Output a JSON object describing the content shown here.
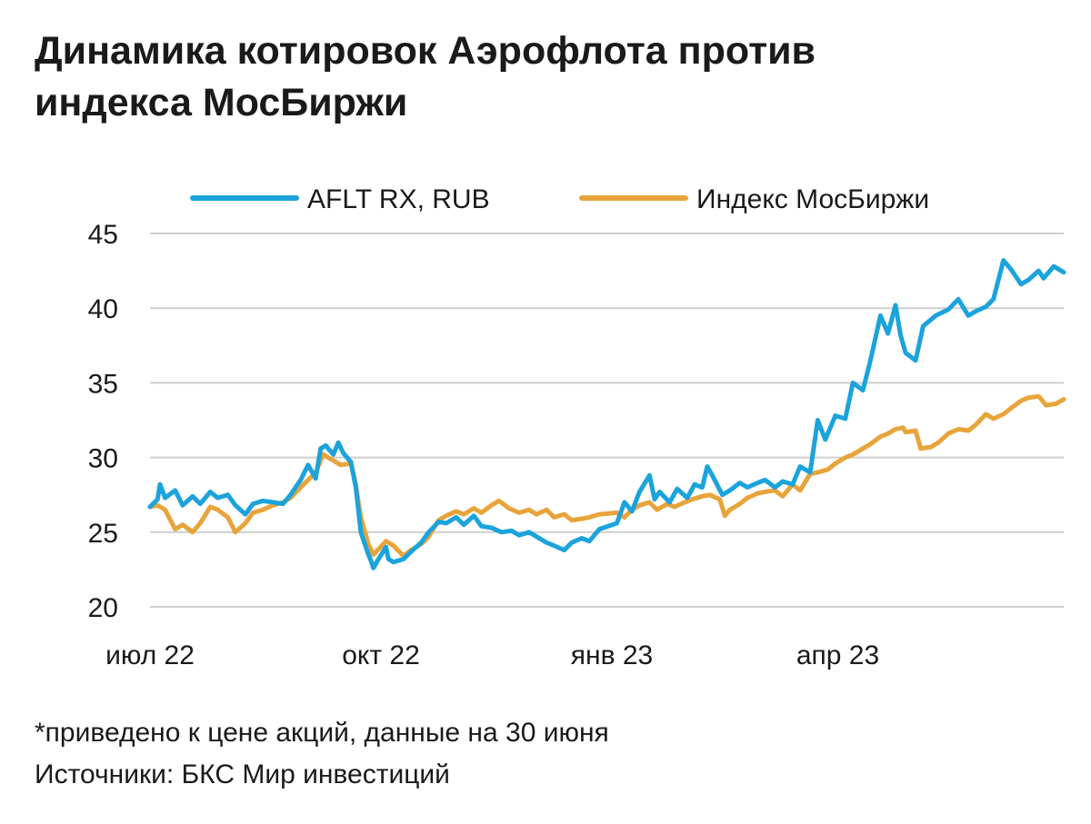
{
  "title_lines": [
    "Динамика котировок Аэрофлота против",
    "индекса МосБиржи"
  ],
  "notes": {
    "footnote": "*приведено к цене акций, данные на 30 июня",
    "source": "Источники: БКС Мир инвестиций"
  },
  "chart_data": {
    "type": "line",
    "title": "Динамика котировок Аэрофлота против индекса МосБиржи",
    "xlabel": "",
    "ylabel": "",
    "ylim": [
      20,
      45
    ],
    "yticks": [
      20,
      25,
      30,
      35,
      40,
      45
    ],
    "xlim": [
      "2022-07-01",
      "2023-06-30"
    ],
    "xticks": [
      {
        "date": "2022-07-01",
        "label": "июл 22"
      },
      {
        "date": "2022-10-01",
        "label": "окт 22"
      },
      {
        "date": "2023-01-01",
        "label": "янв 23"
      },
      {
        "date": "2023-04-01",
        "label": "апр 23"
      }
    ],
    "grid": "horizontal",
    "legend_position": "top",
    "series": [
      {
        "name": "AFLT RX, RUB",
        "color": "#1ba3dc",
        "points": [
          [
            "2022-07-01",
            26.7
          ],
          [
            "2022-07-04",
            27.2
          ],
          [
            "2022-07-05",
            28.2
          ],
          [
            "2022-07-07",
            27.3
          ],
          [
            "2022-07-11",
            27.8
          ],
          [
            "2022-07-14",
            26.8
          ],
          [
            "2022-07-18",
            27.4
          ],
          [
            "2022-07-21",
            26.9
          ],
          [
            "2022-07-25",
            27.7
          ],
          [
            "2022-07-28",
            27.3
          ],
          [
            "2022-08-01",
            27.5
          ],
          [
            "2022-08-04",
            26.8
          ],
          [
            "2022-08-08",
            26.2
          ],
          [
            "2022-08-11",
            26.9
          ],
          [
            "2022-08-15",
            27.1
          ],
          [
            "2022-08-19",
            27.0
          ],
          [
            "2022-08-23",
            26.9
          ],
          [
            "2022-08-26",
            27.5
          ],
          [
            "2022-08-30",
            28.5
          ],
          [
            "2022-09-02",
            29.5
          ],
          [
            "2022-09-05",
            28.6
          ],
          [
            "2022-09-07",
            30.6
          ],
          [
            "2022-09-09",
            30.8
          ],
          [
            "2022-09-12",
            30.2
          ],
          [
            "2022-09-14",
            31.0
          ],
          [
            "2022-09-16",
            30.3
          ],
          [
            "2022-09-19",
            29.7
          ],
          [
            "2022-09-21",
            28.0
          ],
          [
            "2022-09-22",
            26.5
          ],
          [
            "2022-09-23",
            25.0
          ],
          [
            "2022-09-26",
            23.5
          ],
          [
            "2022-09-27",
            23.1
          ],
          [
            "2022-09-28",
            22.6
          ],
          [
            "2022-09-30",
            23.2
          ],
          [
            "2022-10-03",
            24.0
          ],
          [
            "2022-10-04",
            23.2
          ],
          [
            "2022-10-06",
            23.0
          ],
          [
            "2022-10-10",
            23.2
          ],
          [
            "2022-10-13",
            23.7
          ],
          [
            "2022-10-17",
            24.3
          ],
          [
            "2022-10-20",
            25.0
          ],
          [
            "2022-10-24",
            25.7
          ],
          [
            "2022-10-27",
            25.6
          ],
          [
            "2022-10-31",
            26.0
          ],
          [
            "2022-11-03",
            25.5
          ],
          [
            "2022-11-07",
            26.1
          ],
          [
            "2022-11-10",
            25.4
          ],
          [
            "2022-11-14",
            25.3
          ],
          [
            "2022-11-18",
            25.0
          ],
          [
            "2022-11-22",
            25.1
          ],
          [
            "2022-11-25",
            24.8
          ],
          [
            "2022-11-29",
            25.0
          ],
          [
            "2022-12-02",
            24.7
          ],
          [
            "2022-12-06",
            24.3
          ],
          [
            "2022-12-09",
            24.1
          ],
          [
            "2022-12-13",
            23.8
          ],
          [
            "2022-12-16",
            24.3
          ],
          [
            "2022-12-20",
            24.6
          ],
          [
            "2022-12-23",
            24.4
          ],
          [
            "2022-12-27",
            25.2
          ],
          [
            "2023-01-03",
            25.6
          ],
          [
            "2023-01-06",
            27.0
          ],
          [
            "2023-01-09",
            26.4
          ],
          [
            "2023-01-12",
            27.7
          ],
          [
            "2023-01-16",
            28.8
          ],
          [
            "2023-01-18",
            27.2
          ],
          [
            "2023-01-20",
            27.7
          ],
          [
            "2023-01-24",
            27.0
          ],
          [
            "2023-01-27",
            27.9
          ],
          [
            "2023-01-31",
            27.3
          ],
          [
            "2023-02-03",
            28.2
          ],
          [
            "2023-02-06",
            28.0
          ],
          [
            "2023-02-08",
            29.4
          ],
          [
            "2023-02-10",
            28.8
          ],
          [
            "2023-02-14",
            27.5
          ],
          [
            "2023-02-17",
            27.8
          ],
          [
            "2023-02-21",
            28.3
          ],
          [
            "2023-02-24",
            28.0
          ],
          [
            "2023-02-28",
            28.3
          ],
          [
            "2023-03-03",
            28.5
          ],
          [
            "2023-03-07",
            28.0
          ],
          [
            "2023-03-10",
            28.4
          ],
          [
            "2023-03-14",
            28.2
          ],
          [
            "2023-03-17",
            29.4
          ],
          [
            "2023-03-21",
            29.0
          ],
          [
            "2023-03-24",
            32.5
          ],
          [
            "2023-03-27",
            31.2
          ],
          [
            "2023-03-31",
            32.8
          ],
          [
            "2023-04-04",
            32.6
          ],
          [
            "2023-04-07",
            35.0
          ],
          [
            "2023-04-11",
            34.5
          ],
          [
            "2023-04-14",
            36.5
          ],
          [
            "2023-04-18",
            39.5
          ],
          [
            "2023-04-21",
            38.3
          ],
          [
            "2023-04-24",
            40.2
          ],
          [
            "2023-04-26",
            38.2
          ],
          [
            "2023-04-28",
            37.0
          ],
          [
            "2023-05-02",
            36.5
          ],
          [
            "2023-05-05",
            38.8
          ],
          [
            "2023-05-10",
            39.5
          ],
          [
            "2023-05-15",
            39.9
          ],
          [
            "2023-05-19",
            40.6
          ],
          [
            "2023-05-23",
            39.5
          ],
          [
            "2023-05-26",
            39.8
          ],
          [
            "2023-05-30",
            40.1
          ],
          [
            "2023-06-02",
            40.6
          ],
          [
            "2023-06-06",
            43.2
          ],
          [
            "2023-06-09",
            42.6
          ],
          [
            "2023-06-13",
            41.6
          ],
          [
            "2023-06-16",
            41.9
          ],
          [
            "2023-06-20",
            42.5
          ],
          [
            "2023-06-22",
            42.0
          ],
          [
            "2023-06-26",
            42.8
          ],
          [
            "2023-06-30",
            42.4
          ]
        ]
      },
      {
        "name": "Индекс МосБиржи",
        "color": "#e8a43a",
        "points": [
          [
            "2022-07-01",
            26.7
          ],
          [
            "2022-07-04",
            26.8
          ],
          [
            "2022-07-07",
            26.5
          ],
          [
            "2022-07-11",
            25.2
          ],
          [
            "2022-07-14",
            25.5
          ],
          [
            "2022-07-18",
            25.0
          ],
          [
            "2022-07-21",
            25.6
          ],
          [
            "2022-07-25",
            26.7
          ],
          [
            "2022-07-28",
            26.5
          ],
          [
            "2022-08-01",
            26.0
          ],
          [
            "2022-08-04",
            25.0
          ],
          [
            "2022-08-08",
            25.6
          ],
          [
            "2022-08-11",
            26.3
          ],
          [
            "2022-08-15",
            26.5
          ],
          [
            "2022-08-19",
            26.8
          ],
          [
            "2022-08-23",
            27.0
          ],
          [
            "2022-08-26",
            27.3
          ],
          [
            "2022-08-30",
            28.0
          ],
          [
            "2022-09-02",
            28.5
          ],
          [
            "2022-09-05",
            29.0
          ],
          [
            "2022-09-08",
            30.2
          ],
          [
            "2022-09-12",
            29.8
          ],
          [
            "2022-09-15",
            29.5
          ],
          [
            "2022-09-19",
            29.6
          ],
          [
            "2022-09-21",
            28.2
          ],
          [
            "2022-09-22",
            27.0
          ],
          [
            "2022-09-23",
            26.0
          ],
          [
            "2022-09-26",
            24.2
          ],
          [
            "2022-09-28",
            23.5
          ],
          [
            "2022-10-03",
            24.4
          ],
          [
            "2022-10-06",
            24.1
          ],
          [
            "2022-10-10",
            23.4
          ],
          [
            "2022-10-13",
            23.8
          ],
          [
            "2022-10-17",
            24.2
          ],
          [
            "2022-10-20",
            24.7
          ],
          [
            "2022-10-24",
            25.8
          ],
          [
            "2022-10-27",
            26.1
          ],
          [
            "2022-10-31",
            26.4
          ],
          [
            "2022-11-03",
            26.2
          ],
          [
            "2022-11-07",
            26.6
          ],
          [
            "2022-11-10",
            26.3
          ],
          [
            "2022-11-14",
            26.8
          ],
          [
            "2022-11-17",
            27.1
          ],
          [
            "2022-11-21",
            26.6
          ],
          [
            "2022-11-25",
            26.3
          ],
          [
            "2022-11-29",
            26.5
          ],
          [
            "2022-12-02",
            26.2
          ],
          [
            "2022-12-06",
            26.5
          ],
          [
            "2022-12-09",
            26.0
          ],
          [
            "2022-12-13",
            26.2
          ],
          [
            "2022-12-16",
            25.8
          ],
          [
            "2022-12-20",
            25.9
          ],
          [
            "2022-12-23",
            26.0
          ],
          [
            "2022-12-27",
            26.2
          ],
          [
            "2023-01-03",
            26.3
          ],
          [
            "2023-01-06",
            26.0
          ],
          [
            "2023-01-09",
            26.5
          ],
          [
            "2023-01-12",
            26.8
          ],
          [
            "2023-01-16",
            27.0
          ],
          [
            "2023-01-19",
            26.5
          ],
          [
            "2023-01-23",
            26.9
          ],
          [
            "2023-01-26",
            26.7
          ],
          [
            "2023-01-30",
            27.0
          ],
          [
            "2023-02-02",
            27.2
          ],
          [
            "2023-02-06",
            27.4
          ],
          [
            "2023-02-09",
            27.5
          ],
          [
            "2023-02-13",
            27.2
          ],
          [
            "2023-02-15",
            26.1
          ],
          [
            "2023-02-17",
            26.5
          ],
          [
            "2023-02-21",
            26.9
          ],
          [
            "2023-02-24",
            27.3
          ],
          [
            "2023-02-28",
            27.6
          ],
          [
            "2023-03-03",
            27.7
          ],
          [
            "2023-03-07",
            27.8
          ],
          [
            "2023-03-10",
            27.4
          ],
          [
            "2023-03-14",
            28.2
          ],
          [
            "2023-03-17",
            27.8
          ],
          [
            "2023-03-21",
            28.9
          ],
          [
            "2023-03-24",
            29.0
          ],
          [
            "2023-03-28",
            29.2
          ],
          [
            "2023-03-31",
            29.6
          ],
          [
            "2023-04-04",
            30.0
          ],
          [
            "2023-04-07",
            30.2
          ],
          [
            "2023-04-11",
            30.6
          ],
          [
            "2023-04-14",
            30.9
          ],
          [
            "2023-04-18",
            31.4
          ],
          [
            "2023-04-21",
            31.6
          ],
          [
            "2023-04-24",
            31.9
          ],
          [
            "2023-04-27",
            32.0
          ],
          [
            "2023-04-28",
            31.7
          ],
          [
            "2023-05-02",
            31.8
          ],
          [
            "2023-05-04",
            30.6
          ],
          [
            "2023-05-08",
            30.7
          ],
          [
            "2023-05-11",
            31.0
          ],
          [
            "2023-05-15",
            31.6
          ],
          [
            "2023-05-19",
            31.9
          ],
          [
            "2023-05-23",
            31.8
          ],
          [
            "2023-05-26",
            32.2
          ],
          [
            "2023-05-30",
            32.9
          ],
          [
            "2023-06-02",
            32.6
          ],
          [
            "2023-06-06",
            32.9
          ],
          [
            "2023-06-09",
            33.3
          ],
          [
            "2023-06-13",
            33.8
          ],
          [
            "2023-06-16",
            34.0
          ],
          [
            "2023-06-20",
            34.1
          ],
          [
            "2023-06-23",
            33.5
          ],
          [
            "2023-06-27",
            33.6
          ],
          [
            "2023-06-30",
            33.9
          ]
        ]
      }
    ]
  }
}
